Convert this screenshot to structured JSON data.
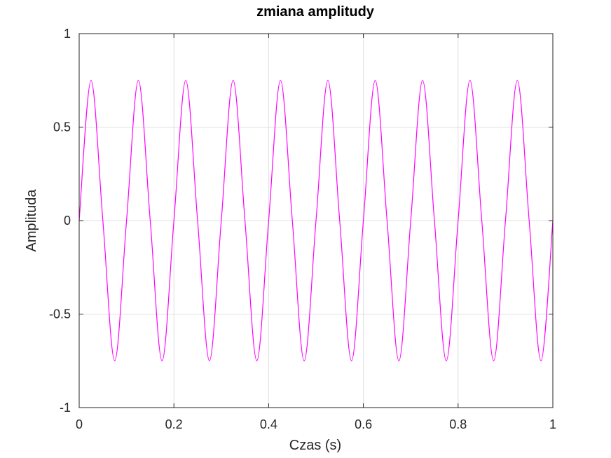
{
  "chart_data": {
    "type": "line",
    "title": "zmiana amplitudy",
    "xlabel": "Czas (s)",
    "ylabel": "Amplituda",
    "xlim": [
      0,
      1
    ],
    "ylim": [
      -1,
      1
    ],
    "grid": true,
    "xticks": [
      0,
      0.2,
      0.4,
      0.6,
      0.8,
      1
    ],
    "xtick_labels": [
      "0",
      "0.2",
      "0.4",
      "0.6",
      "0.8",
      "1"
    ],
    "yticks": [
      -1,
      -0.5,
      0,
      0.5,
      1
    ],
    "ytick_labels": [
      "-1",
      "-0.5",
      "0",
      "0.5",
      "1"
    ],
    "series": [
      {
        "color": "#ff00ff",
        "x": [
          0,
          0.025,
          0.05,
          0.075,
          0.1,
          0.125,
          0.15,
          0.175,
          0.2,
          0.225,
          0.25,
          0.275,
          0.3,
          0.325,
          0.35,
          0.375,
          0.4,
          0.425,
          0.45,
          0.475,
          0.5,
          0.525,
          0.55,
          0.575,
          0.6,
          0.625,
          0.65,
          0.675,
          0.7,
          0.725,
          0.75,
          0.775,
          0.8,
          0.825,
          0.85,
          0.875,
          0.9,
          0.925,
          0.95,
          0.975,
          1.0
        ],
        "y": [
          0,
          0.75,
          0,
          -0.75,
          0,
          0.75,
          0,
          -0.75,
          0,
          0.75,
          0,
          -0.75,
          0,
          0.75,
          0,
          -0.75,
          0,
          0.75,
          0,
          -0.75,
          0,
          0.75,
          0,
          -0.75,
          0,
          0.75,
          0,
          -0.75,
          0,
          0.75,
          0,
          -0.75,
          0,
          0.75,
          0,
          -0.75,
          0,
          0.75,
          0,
          -0.75,
          0
        ]
      }
    ]
  }
}
